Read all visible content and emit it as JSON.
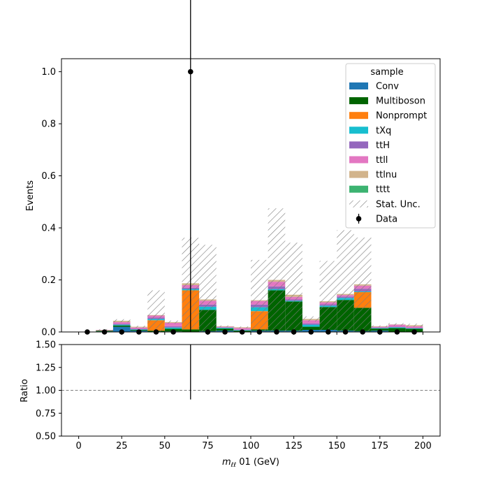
{
  "chart_data": [
    {
      "panel": "main",
      "type": "bar",
      "stacked": true,
      "x_bin_edges": [
        0,
        10,
        20,
        30,
        40,
        50,
        60,
        70,
        80,
        90,
        100,
        110,
        120,
        130,
        140,
        150,
        160,
        170,
        180,
        190,
        200
      ],
      "series": [
        {
          "name": "Conv",
          "color": "#1f77b4",
          "values": [
            0,
            0.002,
            0.02,
            0.005,
            0,
            0.002,
            0,
            0.003,
            0.005,
            0,
            0.005,
            0.005,
            0.005,
            0.008,
            0.008,
            0.005,
            0.003,
            0.005,
            0,
            0
          ]
        },
        {
          "name": "Multiboson",
          "color": "#006400",
          "values": [
            0,
            0.003,
            0.005,
            0.003,
            0.005,
            0.01,
            0.01,
            0.082,
            0.008,
            0.005,
            0.005,
            0.155,
            0.112,
            0.012,
            0.088,
            0.118,
            0.09,
            0.008,
            0.015,
            0.012
          ]
        },
        {
          "name": "Nonprompt",
          "color": "#ff7f0e",
          "values": [
            0,
            0,
            0,
            0,
            0.04,
            0,
            0.15,
            0,
            0,
            0,
            0.07,
            0,
            0,
            0,
            0,
            0,
            0.06,
            0,
            0,
            0
          ]
        },
        {
          "name": "tXq",
          "color": "#17becf",
          "values": [
            0,
            0,
            0.003,
            0.002,
            0.005,
            0.005,
            0.005,
            0.012,
            0.003,
            0.002,
            0.015,
            0.005,
            0.003,
            0.008,
            0.005,
            0.008,
            0.003,
            0.002,
            0.003,
            0.002
          ]
        },
        {
          "name": "ttH",
          "color": "#9467bd",
          "values": [
            0,
            0,
            0.003,
            0.002,
            0.005,
            0.005,
            0.005,
            0.008,
            0.001,
            0.002,
            0.01,
            0.01,
            0.005,
            0.005,
            0.005,
            0.005,
            0.01,
            0.002,
            0.002,
            0.002
          ]
        },
        {
          "name": "ttll",
          "color": "#e377c2",
          "values": [
            0,
            0.002,
            0.007,
            0.005,
            0.008,
            0.013,
            0.01,
            0.015,
            0.003,
            0.006,
            0.014,
            0.018,
            0.01,
            0.012,
            0.008,
            0.006,
            0.012,
            0.003,
            0.008,
            0.006
          ]
        },
        {
          "name": "ttlnu",
          "color": "#d2b48c",
          "values": [
            0,
            0.001,
            0.005,
            0.003,
            0.002,
            0.003,
            0.007,
            0.005,
            0.002,
            0.003,
            0.003,
            0.007,
            0.008,
            0.005,
            0.004,
            0.004,
            0.005,
            0.002,
            0.001,
            0.004
          ]
        },
        {
          "name": "tttt",
          "color": "#3cb371",
          "values": [
            0,
            0,
            0,
            0,
            0,
            0,
            0,
            0,
            0,
            0,
            0,
            0,
            0,
            0,
            0,
            0,
            0,
            0,
            0,
            0
          ]
        }
      ],
      "stat_unc": {
        "name": "Stat. Unc.",
        "totals": [
          0,
          0.008,
          0.043,
          0.02,
          0.065,
          0.038,
          0.187,
          0.125,
          0.022,
          0.018,
          0.122,
          0.2,
          0.143,
          0.05,
          0.118,
          0.146,
          0.183,
          0.022,
          0.029,
          0.026
        ],
        "half_widths": [
          0,
          0.003,
          0.006,
          0.004,
          0.095,
          0.006,
          0.175,
          0.21,
          0.003,
          0.003,
          0.155,
          0.275,
          0.2,
          0.01,
          0.155,
          0.245,
          0.18,
          0.003,
          0.005,
          0.006
        ]
      },
      "data": {
        "name": "Data",
        "x": [
          5,
          15,
          25,
          35,
          45,
          55,
          65,
          75,
          85,
          95,
          105,
          115,
          125,
          135,
          145,
          155,
          165,
          175,
          185,
          195
        ],
        "y": [
          0,
          0,
          0,
          0,
          0,
          0,
          1,
          0,
          0,
          0,
          0,
          0,
          0,
          0,
          0,
          0,
          0,
          0,
          0,
          0
        ],
        "yerr_up": [
          0,
          0,
          0,
          0,
          0,
          0,
          1.15,
          0,
          0,
          0,
          0,
          0,
          0,
          0,
          0,
          0,
          0,
          0,
          0,
          0
        ],
        "yerr_down": [
          0,
          0,
          0,
          0,
          0,
          0,
          1.0,
          0,
          0,
          0,
          0,
          0,
          0,
          0,
          0,
          0,
          0,
          0,
          0,
          0
        ]
      },
      "xlim": [
        -10,
        210
      ],
      "ylim": [
        0,
        1.05
      ],
      "yticks": [
        "0.0",
        "0.2",
        "0.4",
        "0.6",
        "0.8",
        "1.0"
      ],
      "ylabel": "Events",
      "legend": {
        "title": "sample",
        "placement": "top-right"
      }
    },
    {
      "panel": "ratio",
      "type": "line",
      "xlim": [
        -10,
        210
      ],
      "ylim": [
        0.5,
        1.5
      ],
      "yticks": [
        "0.50",
        "0.75",
        "1.00",
        "1.25",
        "1.50"
      ],
      "xticks": [
        "0",
        "25",
        "50",
        "75",
        "100",
        "125",
        "150",
        "175",
        "200"
      ],
      "ylabel": "Ratio",
      "reference_line": 1.0,
      "error_bars": [
        {
          "x": 65,
          "low": 0.9,
          "high": 1.5
        }
      ],
      "xlabel": {
        "math": "m",
        "sub": "ℓℓ",
        "rest": " 01 (GeV)"
      }
    }
  ]
}
